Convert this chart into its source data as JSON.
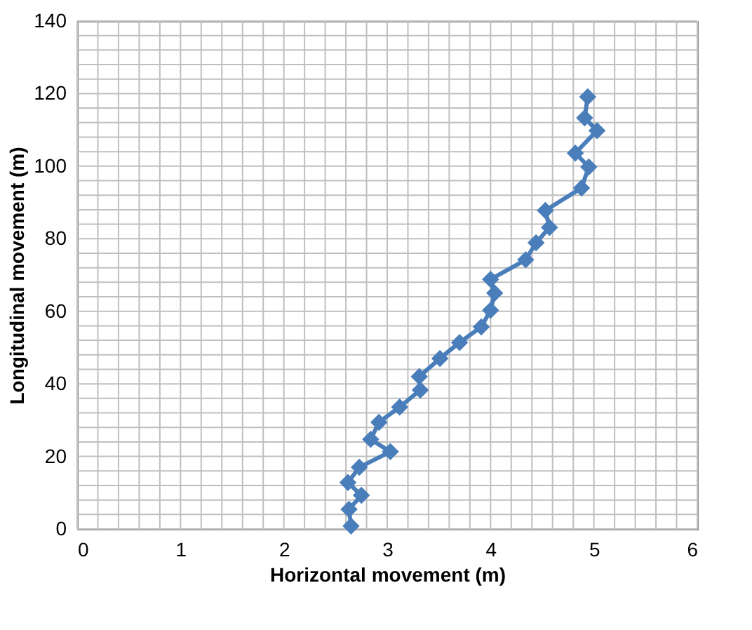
{
  "chart_data": {
    "type": "line",
    "xlabel": "Horizontal movement (m)",
    "ylabel": "Longitudinal movement (m)",
    "x": [
      2.65,
      2.63,
      2.75,
      2.62,
      2.73,
      3.03,
      2.84,
      2.92,
      3.12,
      3.32,
      3.31,
      3.51,
      3.7,
      3.91,
      4.0,
      4.04,
      4.0,
      4.34,
      4.44,
      4.57,
      4.53,
      4.88,
      4.95,
      4.82,
      5.03,
      4.91,
      4.94
    ],
    "series": [
      {
        "color": "#4a7ebb",
        "values": [
          0.8,
          5.4,
          9.3,
          12.8,
          17,
          21.3,
          24.7,
          29.4,
          33.6,
          38.3,
          42,
          47,
          51.4,
          55.7,
          60.3,
          65,
          68.8,
          74.2,
          78.9,
          83.1,
          87.8,
          94,
          99.8,
          103.6,
          109.8,
          113.3,
          119.1
        ]
      }
    ],
    "xlim": [
      0,
      6
    ],
    "xticks": [
      0,
      {
        "value": 0.2,
        "label": null
      },
      {
        "value": 0.4,
        "label": null
      },
      {
        "value": 0.6,
        "label": null
      },
      {
        "value": 0.8,
        "label": null
      },
      1,
      {
        "value": 1.2,
        "label": null
      },
      {
        "value": 1.4,
        "label": null
      },
      {
        "value": 1.6,
        "label": null
      },
      {
        "value": 1.8,
        "label": null
      },
      2,
      {
        "value": 2.2,
        "label": null
      },
      {
        "value": 2.4,
        "label": null
      },
      {
        "value": 2.6,
        "label": null
      },
      {
        "value": 2.8,
        "label": null
      },
      3,
      {
        "value": 3.2,
        "label": null
      },
      {
        "value": 3.4,
        "label": null
      },
      {
        "value": 3.6,
        "label": null
      },
      {
        "value": 3.8,
        "label": null
      },
      4,
      {
        "value": 4.2,
        "label": null
      },
      {
        "value": 4.4,
        "label": null
      },
      {
        "value": 4.6,
        "label": null
      },
      {
        "value": 4.8,
        "label": null
      },
      5,
      {
        "value": 5.2,
        "label": null
      },
      {
        "value": 5.4,
        "label": null
      },
      {
        "value": 5.6,
        "label": null
      },
      {
        "value": 5.8,
        "label": null
      },
      6
    ],
    "ylim": [
      0,
      140
    ],
    "yticks": [
      0,
      {
        "value": 4,
        "label": null
      },
      {
        "value": 8,
        "label": null
      },
      {
        "value": 12,
        "label": null
      },
      {
        "value": 16,
        "label": null
      },
      20,
      {
        "value": 24,
        "label": null
      },
      {
        "value": 28,
        "label": null
      },
      {
        "value": 32,
        "label": null
      },
      {
        "value": 36,
        "label": null
      },
      40,
      {
        "value": 44,
        "label": null
      },
      {
        "value": 48,
        "label": null
      },
      {
        "value": 52,
        "label": null
      },
      {
        "value": 56,
        "label": null
      },
      60,
      {
        "value": 64,
        "label": null
      },
      {
        "value": 68,
        "label": null
      },
      {
        "value": 72,
        "label": null
      },
      {
        "value": 76,
        "label": null
      },
      80,
      {
        "value": 84,
        "label": null
      },
      {
        "value": 88,
        "label": null
      },
      {
        "value": 92,
        "label": null
      },
      {
        "value": 96,
        "label": null
      },
      100,
      {
        "value": 104,
        "label": null
      },
      {
        "value": 108,
        "label": null
      },
      {
        "value": 112,
        "label": null
      },
      {
        "value": 116,
        "label": null
      },
      120,
      {
        "value": 124,
        "label": null
      },
      {
        "value": 128,
        "label": null
      },
      {
        "value": 132,
        "label": null
      },
      {
        "value": 136,
        "label": null
      },
      140
    ],
    "grid": true,
    "marker": "diamond",
    "line_style": "solid",
    "legend": false
  }
}
